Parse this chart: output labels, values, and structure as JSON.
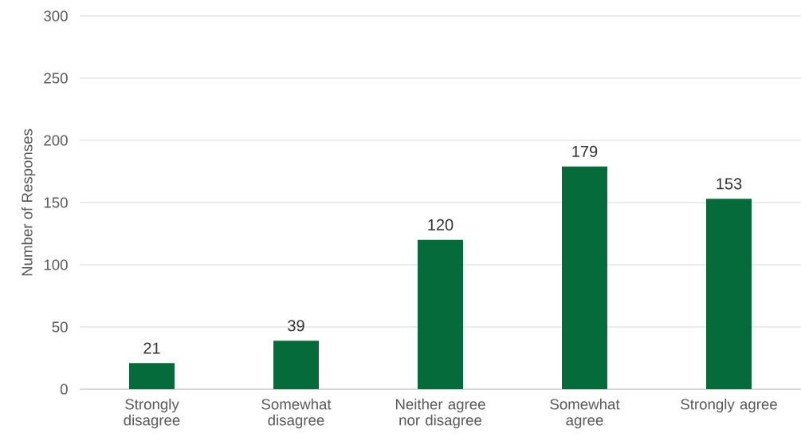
{
  "chart_data": {
    "type": "bar",
    "ylabel": "Number of Responses",
    "categories": [
      "Strongly disagree",
      "Somewhat disagree",
      "Neither agree nor disagree",
      "Somewhat agree",
      "Strongly agree"
    ],
    "values": [
      21,
      39,
      120,
      179,
      153
    ],
    "color": "#056b3a",
    "ylim": [
      0,
      300
    ],
    "yticks": [
      0,
      50,
      100,
      150,
      200,
      250,
      300
    ],
    "grid": "y",
    "data_labels": true
  }
}
